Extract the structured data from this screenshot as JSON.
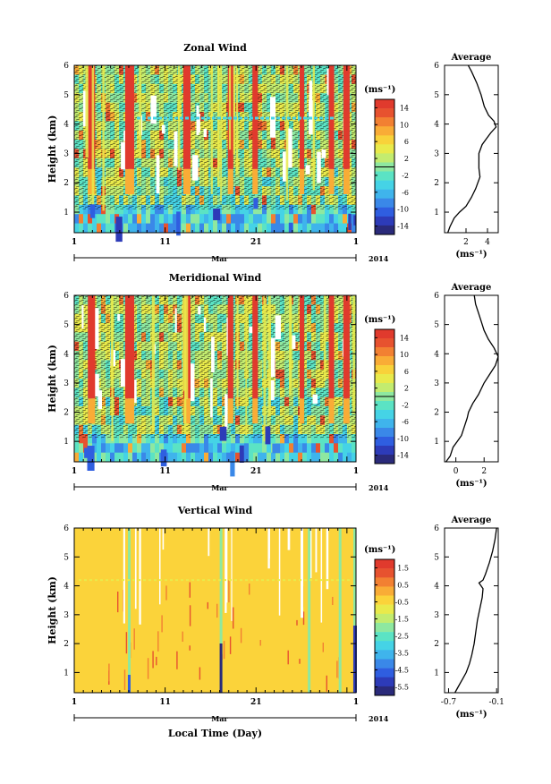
{
  "x_axis": {
    "ticks": [
      "1",
      "11",
      "21",
      "1"
    ],
    "month_label": "Mar",
    "year_label": "2014",
    "xlabel": "Local Time (Day)"
  },
  "chart_data": [
    {
      "type": "heatmap",
      "title": "Zonal Wind",
      "ylabel": "Height (km)",
      "yticks": [
        "1",
        "2",
        "3",
        "4",
        "5",
        "6"
      ],
      "ylim": [
        0.3,
        6.0
      ],
      "colorbar": {
        "unit": "(ms⁻¹)",
        "ticks": [
          "14",
          "10",
          "6",
          "2",
          "-2",
          "-6",
          "-10",
          "-14"
        ],
        "range": [
          -16,
          16
        ]
      },
      "profile": {
        "title": "Average",
        "xlabel": "(ms⁻¹)",
        "xticks": [
          "2",
          "4"
        ],
        "xtick_values": [
          2,
          4
        ],
        "xlim": [
          0,
          5
        ],
        "heights": [
          0.3,
          0.5,
          0.8,
          1.0,
          1.2,
          1.5,
          1.8,
          2.0,
          2.2,
          2.5,
          2.8,
          3.0,
          3.3,
          3.5,
          3.7,
          3.9,
          4.1,
          4.3,
          4.6,
          5.0,
          5.4,
          5.8,
          6.0
        ],
        "values": [
          0.3,
          0.5,
          0.9,
          1.4,
          2.0,
          2.5,
          2.9,
          3.1,
          3.3,
          3.2,
          3.2,
          3.2,
          3.5,
          3.9,
          4.3,
          4.8,
          4.6,
          4.1,
          3.7,
          3.4,
          3.0,
          2.5,
          2.2
        ]
      }
    },
    {
      "type": "heatmap",
      "title": "Meridional Wind",
      "ylabel": "Height (km)",
      "yticks": [
        "1",
        "2",
        "3",
        "4",
        "5",
        "6"
      ],
      "ylim": [
        0.3,
        6.0
      ],
      "colorbar": {
        "unit": "(ms⁻¹)",
        "ticks": [
          "14",
          "10",
          "6",
          "2",
          "-2",
          "-6",
          "-10",
          "-14"
        ],
        "range": [
          -16,
          16
        ]
      },
      "profile": {
        "title": "Average",
        "xlabel": "(ms⁻¹)",
        "xticks": [
          "0",
          "2"
        ],
        "xtick_values": [
          0,
          2
        ],
        "xlim": [
          -0.8,
          3.0
        ],
        "heights": [
          0.3,
          0.5,
          0.8,
          1.0,
          1.2,
          1.5,
          1.8,
          2.0,
          2.3,
          2.6,
          3.0,
          3.3,
          3.6,
          3.9,
          4.2,
          4.5,
          4.8,
          5.1,
          5.4,
          5.7,
          6.0
        ],
        "values": [
          -0.7,
          -0.4,
          -0.2,
          0.1,
          0.4,
          0.6,
          0.8,
          0.9,
          1.2,
          1.6,
          2.0,
          2.4,
          2.8,
          3.0,
          2.7,
          2.3,
          2.0,
          1.8,
          1.6,
          1.4,
          1.3
        ]
      }
    },
    {
      "type": "heatmap",
      "title": "Vertical Wind",
      "ylabel": "Height (km)",
      "yticks": [
        "1",
        "2",
        "3",
        "4",
        "5",
        "6"
      ],
      "ylim": [
        0.3,
        6.0
      ],
      "colorbar": {
        "unit": "(ms⁻¹)",
        "ticks": [
          "1.5",
          "0.5",
          "-0.5",
          "-1.5",
          "-2.5",
          "-3.5",
          "-4.5",
          "-5.5"
        ],
        "range": [
          -6.0,
          2.0
        ]
      },
      "profile": {
        "title": "Average",
        "xlabel": "(ms⁻¹)",
        "xticks": [
          "-0.7",
          "-0.1"
        ],
        "xtick_values": [
          -0.7,
          -0.1
        ],
        "xlim": [
          -0.75,
          -0.08
        ],
        "heights": [
          0.3,
          0.5,
          0.8,
          1.0,
          1.3,
          1.6,
          2.0,
          2.4,
          2.8,
          3.2,
          3.6,
          3.9,
          4.1,
          4.2,
          4.4,
          4.8,
          5.2,
          5.6,
          6.0
        ],
        "values": [
          -0.62,
          -0.58,
          -0.52,
          -0.48,
          -0.44,
          -0.41,
          -0.38,
          -0.36,
          -0.34,
          -0.31,
          -0.28,
          -0.27,
          -0.32,
          -0.27,
          -0.24,
          -0.19,
          -0.15,
          -0.12,
          -0.1
        ]
      }
    }
  ]
}
